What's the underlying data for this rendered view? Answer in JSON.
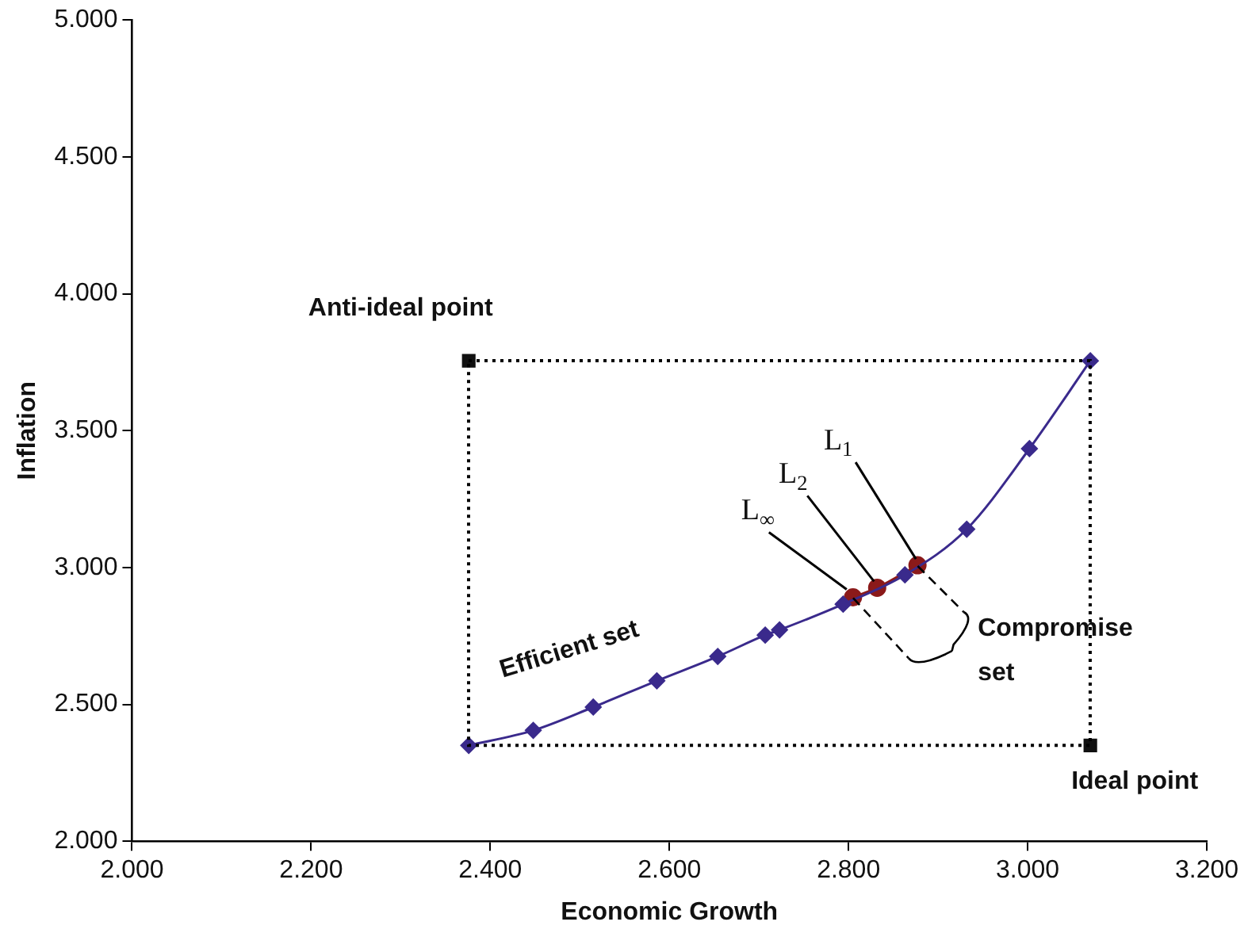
{
  "chart_data": {
    "type": "line",
    "xlabel": "Economic Growth",
    "ylabel": "Inflation",
    "xlim": [
      2.0,
      3.2
    ],
    "ylim": [
      2.0,
      5.0
    ],
    "xticks": [
      {
        "value": 2.0,
        "label": "2.000"
      },
      {
        "value": 2.2,
        "label": "2.200"
      },
      {
        "value": 2.4,
        "label": "2.400"
      },
      {
        "value": 2.6,
        "label": "2.600"
      },
      {
        "value": 2.8,
        "label": "2.800"
      },
      {
        "value": 3.0,
        "label": "3.000"
      },
      {
        "value": 3.2,
        "label": "3.200"
      }
    ],
    "yticks": [
      {
        "value": 2.0,
        "label": "2.000"
      },
      {
        "value": 2.5,
        "label": "2.500"
      },
      {
        "value": 3.0,
        "label": "3.000"
      },
      {
        "value": 3.5,
        "label": "3.500"
      },
      {
        "value": 4.0,
        "label": "4.000"
      },
      {
        "value": 4.5,
        "label": "4.500"
      },
      {
        "value": 5.0,
        "label": "5.000"
      }
    ],
    "grid": false,
    "legend": false,
    "series": [
      {
        "color": "#3a2a8c",
        "marker": "diamond",
        "x": [
          2.376,
          2.448,
          2.515,
          2.586,
          2.654,
          2.707,
          2.723,
          2.794,
          2.863,
          2.932,
          3.002,
          3.07
        ],
        "values": [
          2.35,
          2.405,
          2.49,
          2.586,
          2.675,
          2.753,
          2.772,
          2.866,
          2.973,
          3.14,
          3.434,
          3.755
        ]
      },
      {
        "color": "#8b1a1a",
        "marker": "circle",
        "x": [
          2.805,
          2.832,
          2.877
        ],
        "values": [
          2.891,
          2.926,
          3.008
        ]
      },
      {
        "type": "scatter",
        "color": "#111111",
        "marker": "square",
        "x": [
          2.376,
          3.07
        ],
        "values": [
          3.755,
          2.35
        ]
      }
    ],
    "annotations": [
      {
        "text": "Anti-ideal point",
        "x": 2.376,
        "y": 3.755
      },
      {
        "text": "Ideal point",
        "x": 3.07,
        "y": 2.35
      },
      {
        "text": "Efficient set",
        "x": 2.515,
        "y": 2.49
      },
      {
        "text": "Compromise set",
        "x": 2.877,
        "y": 3.008
      },
      {
        "text": "L$_{∞}$",
        "x": 2.805,
        "y": 2.891
      },
      {
        "text": "L$_{2}$",
        "x": 2.832,
        "y": 2.926
      },
      {
        "text": "L$_{1}$",
        "x": 2.877,
        "y": 3.008
      }
    ]
  }
}
